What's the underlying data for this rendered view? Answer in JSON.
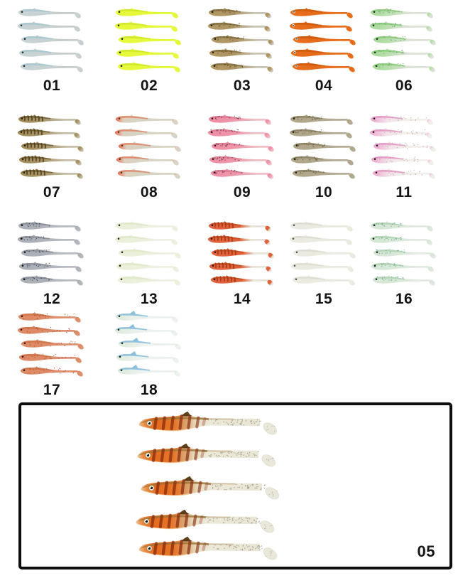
{
  "page": {
    "background": "#ffffff",
    "label_color": "#141414",
    "frame_color": "#0d0d0d"
  },
  "grid": {
    "lures_per_group": 5,
    "groups": [
      {
        "id": "01",
        "label": "01",
        "eye": "dark",
        "decor": "none",
        "decor_span": "front",
        "fade": [
          0.38,
          0.78
        ],
        "colors": {
          "head": "#c6d2d4",
          "mid": "#c9d2d3",
          "tail": "#c6cccb",
          "back": "#a2c6ce",
          "decor": "#8fb2ba",
          "eye": "#20262a"
        }
      },
      {
        "id": "02",
        "label": "02",
        "eye": "dark",
        "decor": "none",
        "decor_span": "front",
        "fade": [
          0.38,
          0.78
        ],
        "colors": {
          "head": "#e6fa3c",
          "mid": "#e5f93a",
          "tail": "#e2f838",
          "back": "#cde32b",
          "decor": "#cde32b",
          "eye": "#202020"
        }
      },
      {
        "id": "03",
        "label": "03",
        "eye": "dark",
        "decor": "speckle",
        "decor_span": "front",
        "fade": [
          0.42,
          0.8
        ],
        "colors": {
          "head": "#b29a66",
          "mid": "#ac9260",
          "tail": "#c8c3b2",
          "back": "#7f6a3c",
          "decor": "#57441f",
          "eye": "#241c0e"
        }
      },
      {
        "id": "04",
        "label": "04",
        "eye": "white",
        "decor": "none",
        "decor_span": "front",
        "fade": [
          0.38,
          0.78
        ],
        "colors": {
          "head": "#e7701f",
          "mid": "#e56a1a",
          "tail": "#e7701f",
          "back": "#c95708",
          "decor": "#c95708",
          "eye": "#141414"
        }
      },
      {
        "id": "06",
        "label": "06",
        "eye": "dark",
        "decor": "speckle",
        "decor_span": "front",
        "fade": [
          0.3,
          0.65
        ],
        "colors": {
          "head": "#a6d898",
          "mid": "#b9dfae",
          "tail": "#dde2d7",
          "back": "#86c878",
          "decor": "#5f9e54",
          "eye": "#1c2e1e"
        }
      },
      {
        "id": "07",
        "label": "07",
        "eye": "dark",
        "decor": "bars",
        "decor_span": "front",
        "fade": [
          0.42,
          0.8
        ],
        "colors": {
          "head": "#a08b57",
          "mid": "#a89468",
          "tail": "#c5bea8",
          "back": "#6b5930",
          "decor": "#463718",
          "eye": "#211a0b"
        }
      },
      {
        "id": "08",
        "label": "08",
        "eye": "dark",
        "decor": "none",
        "decor_span": "front",
        "fade": [
          0.14,
          0.42
        ],
        "colors": {
          "head": "#e8684a",
          "mid": "#dcd0bd",
          "tail": "#d7d3c5",
          "back": "#e08060",
          "decor": "#e08060",
          "eye": "#4a3228"
        }
      },
      {
        "id": "09",
        "label": "09",
        "eye": "dark",
        "decor": "speckle",
        "decor_span": "front",
        "fade": [
          0.45,
          0.82
        ],
        "colors": {
          "head": "#ef8da4",
          "mid": "#ee96aa",
          "tail": "#eec0c6",
          "back": "#d87890",
          "decor": "#47262e",
          "eye": "#2e1218"
        }
      },
      {
        "id": "10",
        "label": "10",
        "eye": "dark",
        "decor": "speckle",
        "decor_span": "front",
        "fade": [
          0.42,
          0.8
        ],
        "colors": {
          "head": "#b1a78b",
          "mid": "#b0a68a",
          "tail": "#b4ac98",
          "back": "#8b8063",
          "decor": "#5c5338",
          "eye": "#201a0c"
        }
      },
      {
        "id": "11",
        "label": "11",
        "eye": "dark",
        "decor": "speckle",
        "decor_span": "full",
        "fade": [
          0.3,
          0.6
        ],
        "colors": {
          "head": "#efa9cf",
          "mid": "#f2e3ea",
          "tail": "#f1efe8",
          "back": "#e490c0",
          "decor": "#b89cae",
          "eye": "#141414"
        }
      },
      {
        "id": "12",
        "label": "12",
        "eye": "dark",
        "decor": "speckle",
        "decor_span": "front",
        "fade": [
          0.4,
          0.8
        ],
        "colors": {
          "head": "#aaaeb5",
          "mid": "#adb1b8",
          "tail": "#b7bbc1",
          "back": "#868b95",
          "decor": "#343a44",
          "eye": "#13161c"
        }
      },
      {
        "id": "13",
        "label": "13",
        "eye": "dark",
        "decor": "none",
        "decor_span": "front",
        "fade": [
          0.38,
          0.78
        ],
        "colors": {
          "head": "#e9efd8",
          "mid": "#eaf0da",
          "tail": "#edf0e3",
          "back": "#dce7c6",
          "decor": "#dce7c6",
          "eye": "#1a2212"
        }
      },
      {
        "id": "14",
        "label": "14",
        "eye": "dark",
        "decor": "bars",
        "decor_span": "front",
        "fade": [
          0.55,
          0.75
        ],
        "colors": {
          "head": "#e06340",
          "mid": "#de6038",
          "tail": "#e7e4d7",
          "back": "#c24f22",
          "decor": "#a2330f",
          "eye": "#2a140a"
        }
      },
      {
        "id": "15",
        "label": "15",
        "eye": "dark",
        "decor": "none",
        "decor_span": "front",
        "fade": [
          0.38,
          0.78
        ],
        "colors": {
          "head": "#ebebe2",
          "mid": "#eaeae1",
          "tail": "#e9e9e0",
          "back": "#d9d9ce",
          "decor": "#d9d9ce",
          "eye": "#50504a"
        }
      },
      {
        "id": "16",
        "label": "16",
        "eye": "dark",
        "decor": "speckle",
        "decor_span": "front",
        "fade": [
          0.4,
          0.78
        ],
        "colors": {
          "head": "#d5e6d5",
          "mid": "#d9e8d9",
          "tail": "#e1e9e0",
          "back": "#abcfad",
          "decor": "#55a084",
          "eye": "#102018"
        }
      },
      {
        "id": "17",
        "label": "17",
        "eye": "dark",
        "decor": "speckle",
        "decor_span": "full",
        "fade": [
          0.38,
          0.78
        ],
        "colors": {
          "head": "#de8a64",
          "mid": "#dd8a66",
          "tail": "#dd9272",
          "back": "#cf7048",
          "decor": "#a84a28",
          "eye": "#30160a"
        }
      },
      {
        "id": "18",
        "label": "18",
        "eye": "dark",
        "decor": "none",
        "decor_span": "front",
        "bigfin": true,
        "fade": [
          0.4,
          0.75
        ],
        "colors": {
          "head": "#dcead8",
          "mid": "#edf2ef",
          "tail": "#ecf1ed",
          "back": "#7db7da",
          "decor": "#7db7da",
          "eye": "#0e271c"
        }
      }
    ]
  },
  "featured": {
    "label": "05",
    "lure_count": 5,
    "colors": {
      "stops": [
        [
          0,
          "#e7cc9c"
        ],
        [
          0.05,
          "#ea8a42"
        ],
        [
          0.13,
          "#e46a1e"
        ],
        [
          0.3,
          "#e6762a"
        ],
        [
          0.4,
          "#d9a876"
        ],
        [
          0.47,
          "#e9dcc0"
        ],
        [
          0.58,
          "#ece8d8"
        ],
        [
          1,
          "#e9e6d6"
        ]
      ],
      "back": "#9a7334",
      "fin": "#503512",
      "bars": "#84280e",
      "belly": "#f2e2c0",
      "specks": "#6b6554",
      "paddle": "#e9e8da",
      "eye_white": "#f6f3ea",
      "eye_pupil": "#101010",
      "eye_ring": "#a88848"
    }
  }
}
